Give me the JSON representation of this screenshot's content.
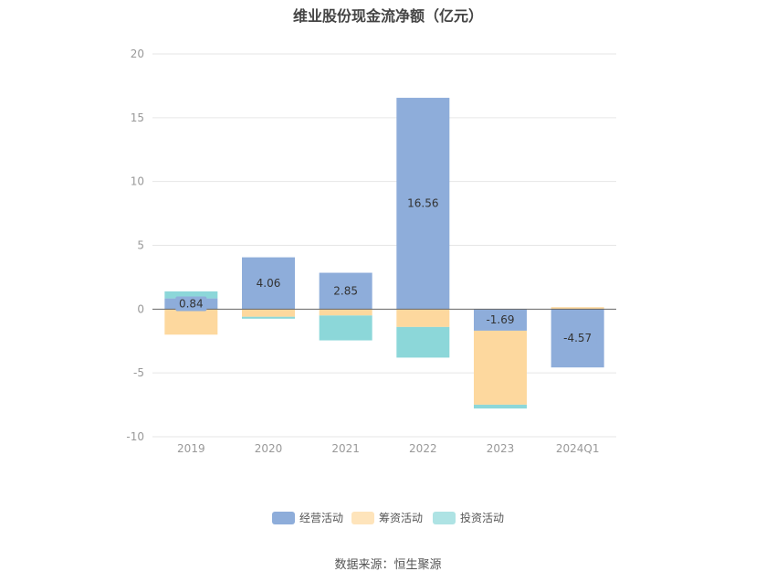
{
  "chart_data": {
    "type": "bar",
    "stacked": true,
    "title": "维业股份现金流净额（亿元）",
    "categories": [
      "2019",
      "2020",
      "2021",
      "2022",
      "2023",
      "2024Q1"
    ],
    "series": [
      {
        "name": "经营活动",
        "color": "#8eadda",
        "values": [
          0.84,
          4.06,
          2.85,
          16.56,
          -1.69,
          -4.57
        ]
      },
      {
        "name": "筹资活动",
        "color": "#fdd89e",
        "values": [
          -2.0,
          -0.6,
          -0.5,
          -1.4,
          -5.8,
          0.15
        ]
      },
      {
        "name": "投资活动",
        "color": "#8cd7d9",
        "values": [
          0.55,
          -0.15,
          -1.95,
          -2.4,
          -0.3,
          0.0
        ]
      }
    ],
    "data_labels": [
      "0.84",
      "4.06",
      "2.85",
      "16.56",
      "-1.69",
      "-4.57"
    ],
    "ylim": [
      -10,
      20
    ],
    "yticks": [
      "20",
      "15",
      "10",
      "5",
      "0",
      "-5",
      "-10"
    ],
    "ytick_values": [
      20,
      15,
      10,
      5,
      0,
      -5,
      -10
    ],
    "grid": true,
    "legend_position": "bottom"
  },
  "source_text": "数据来源：恒生聚源"
}
